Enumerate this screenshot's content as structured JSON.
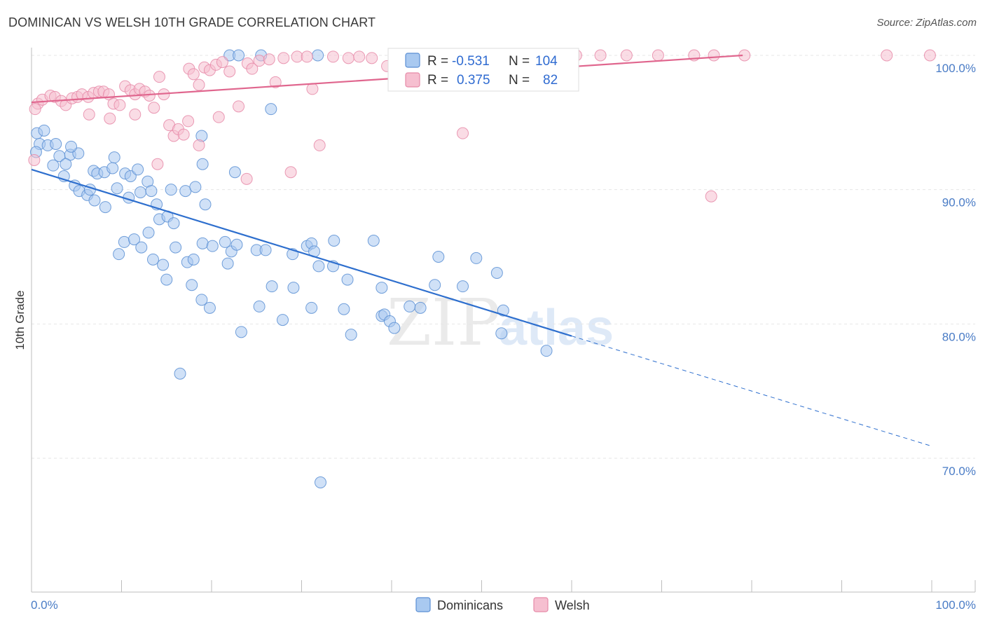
{
  "title": "DOMINICAN VS WELSH 10TH GRADE CORRELATION CHART",
  "source": "Source: ZipAtlas.com",
  "watermark": {
    "zip": "ZIP",
    "atlas": "atlas"
  },
  "legend_top": [
    {
      "r_label": "R =",
      "r_value": "-0.531",
      "n_label": "N =",
      "n_value": "104"
    },
    {
      "r_label": "R =",
      "r_value": "0.375",
      "n_label": "N =",
      "n_value": "82"
    }
  ],
  "legend_bottom": [
    "Dominicans",
    "Welsh"
  ],
  "colors": {
    "dominican_fill": "#a9c9f0",
    "dominican_stroke": "#5b8fd4",
    "dominican_line": "#2e6fce",
    "welsh_fill": "#f6bfd0",
    "welsh_stroke": "#e68aa8",
    "welsh_line": "#e0668e",
    "tick_label": "#4a7cc6",
    "grid": "#e6e6e6"
  },
  "chart_data": {
    "type": "scatter",
    "title": "DOMINICAN VS WELSH 10TH GRADE CORRELATION CHART",
    "xlabel": "",
    "ylabel": "10th Grade",
    "xlim": [
      0,
      100
    ],
    "ylim": [
      60.5,
      101.5
    ],
    "x_tick_labels": [
      {
        "value": 0,
        "label": "0.0%"
      },
      {
        "value": 100,
        "label": "100.0%"
      }
    ],
    "y_tick_labels": [
      {
        "value": 100,
        "label": "100.0%"
      },
      {
        "value": 90,
        "label": "90.0%"
      },
      {
        "value": 80,
        "label": "80.0%"
      },
      {
        "value": 70,
        "label": "70.0%"
      }
    ],
    "x_minor_ticks": [
      10,
      20,
      30,
      40,
      50,
      60,
      70,
      80,
      90
    ],
    "grid": true,
    "legend_position": "top-center",
    "series": [
      {
        "name": "Dominicans",
        "r": -0.531,
        "n": 104,
        "trend": {
          "x0": 0,
          "y0": 91.5,
          "x1": 60,
          "y1": 79.1,
          "dashed_to_x": 100,
          "dashed_to_y": 70.9
        },
        "points": [
          [
            0.6,
            94.2
          ],
          [
            1.4,
            94.4
          ],
          [
            0.9,
            93.4
          ],
          [
            1.8,
            93.3
          ],
          [
            2.7,
            93.4
          ],
          [
            3.1,
            92.5
          ],
          [
            4.3,
            92.6
          ],
          [
            5.2,
            92.7
          ],
          [
            3.8,
            91.9
          ],
          [
            6.9,
            91.4
          ],
          [
            7.3,
            91.2
          ],
          [
            8.1,
            91.3
          ],
          [
            9.0,
            91.6
          ],
          [
            10.4,
            91.2
          ],
          [
            11.0,
            91.0
          ],
          [
            12.9,
            90.6
          ],
          [
            3.6,
            91.0
          ],
          [
            4.8,
            90.3
          ],
          [
            5.3,
            89.9
          ],
          [
            6.2,
            89.6
          ],
          [
            7.0,
            89.2
          ],
          [
            8.2,
            88.7
          ],
          [
            9.5,
            90.1
          ],
          [
            10.8,
            89.4
          ],
          [
            12.1,
            89.8
          ],
          [
            13.3,
            89.9
          ],
          [
            13.9,
            88.9
          ],
          [
            15.5,
            90.0
          ],
          [
            17.1,
            89.9
          ],
          [
            18.2,
            90.2
          ],
          [
            14.2,
            87.8
          ],
          [
            15.1,
            88.0
          ],
          [
            15.8,
            87.5
          ],
          [
            13.0,
            86.8
          ],
          [
            10.3,
            86.1
          ],
          [
            11.4,
            86.3
          ],
          [
            12.2,
            85.7
          ],
          [
            13.5,
            84.8
          ],
          [
            14.6,
            84.4
          ],
          [
            15.0,
            83.3
          ],
          [
            9.7,
            85.2
          ],
          [
            16.0,
            85.7
          ],
          [
            17.3,
            84.6
          ],
          [
            18.0,
            84.8
          ],
          [
            19.0,
            86.0
          ],
          [
            20.1,
            85.8
          ],
          [
            21.5,
            86.1
          ],
          [
            22.2,
            85.4
          ],
          [
            21.8,
            84.5
          ],
          [
            22.8,
            85.9
          ],
          [
            17.8,
            82.9
          ],
          [
            18.9,
            81.8
          ],
          [
            19.8,
            81.2
          ],
          [
            16.5,
            76.3
          ],
          [
            25.0,
            85.5
          ],
          [
            26.0,
            85.5
          ],
          [
            25.3,
            81.3
          ],
          [
            26.7,
            82.8
          ],
          [
            27.9,
            80.3
          ],
          [
            29.1,
            82.7
          ],
          [
            29.0,
            85.2
          ],
          [
            30.6,
            85.8
          ],
          [
            31.1,
            86.0
          ],
          [
            31.4,
            85.4
          ],
          [
            31.9,
            84.3
          ],
          [
            33.6,
            86.2
          ],
          [
            33.5,
            84.3
          ],
          [
            35.1,
            83.3
          ],
          [
            34.7,
            81.1
          ],
          [
            35.5,
            79.2
          ],
          [
            31.1,
            81.2
          ],
          [
            23.3,
            79.4
          ],
          [
            38.9,
            80.6
          ],
          [
            39.2,
            80.7
          ],
          [
            39.8,
            80.2
          ],
          [
            40.3,
            79.7
          ],
          [
            38.9,
            82.7
          ],
          [
            42.0,
            81.3
          ],
          [
            43.2,
            81.2
          ],
          [
            44.8,
            82.9
          ],
          [
            45.2,
            85.0
          ],
          [
            47.9,
            82.8
          ],
          [
            49.4,
            84.9
          ],
          [
            51.7,
            83.8
          ],
          [
            52.4,
            81.0
          ],
          [
            52.2,
            79.3
          ],
          [
            57.2,
            78.0
          ],
          [
            32.1,
            68.2
          ],
          [
            38.0,
            86.2
          ],
          [
            26.6,
            96.0
          ],
          [
            19.0,
            91.9
          ],
          [
            22.6,
            91.3
          ],
          [
            19.3,
            88.9
          ],
          [
            18.9,
            94.0
          ],
          [
            22.0,
            100.0
          ],
          [
            23.0,
            100.0
          ],
          [
            25.5,
            100.0
          ],
          [
            31.8,
            100.0
          ],
          [
            4.4,
            93.2
          ],
          [
            6.5,
            90.0
          ],
          [
            0.5,
            92.8
          ],
          [
            2.4,
            91.8
          ],
          [
            9.2,
            92.4
          ],
          [
            11.8,
            91.5
          ]
        ]
      },
      {
        "name": "Welsh",
        "r": 0.375,
        "n": 82,
        "trend": {
          "x0": 0,
          "y0": 96.5,
          "x1": 79,
          "y1": 100.0
        },
        "points": [
          [
            0.7,
            96.4
          ],
          [
            1.2,
            96.7
          ],
          [
            2.1,
            97.0
          ],
          [
            2.6,
            96.9
          ],
          [
            3.3,
            96.6
          ],
          [
            3.8,
            96.3
          ],
          [
            4.5,
            96.8
          ],
          [
            5.1,
            96.9
          ],
          [
            5.6,
            97.1
          ],
          [
            6.3,
            96.9
          ],
          [
            6.9,
            97.2
          ],
          [
            7.5,
            97.3
          ],
          [
            8.0,
            97.3
          ],
          [
            8.6,
            97.1
          ],
          [
            9.1,
            96.4
          ],
          [
            9.8,
            96.3
          ],
          [
            10.4,
            97.7
          ],
          [
            11.0,
            97.4
          ],
          [
            11.5,
            97.1
          ],
          [
            12.0,
            97.5
          ],
          [
            12.6,
            97.3
          ],
          [
            13.1,
            97.0
          ],
          [
            13.6,
            96.1
          ],
          [
            14.2,
            98.4
          ],
          [
            14.7,
            97.1
          ],
          [
            15.3,
            94.8
          ],
          [
            15.8,
            94.0
          ],
          [
            16.3,
            94.5
          ],
          [
            16.9,
            94.1
          ],
          [
            17.5,
            99.0
          ],
          [
            18.0,
            98.6
          ],
          [
            18.6,
            97.8
          ],
          [
            19.2,
            99.1
          ],
          [
            19.8,
            98.9
          ],
          [
            20.5,
            99.3
          ],
          [
            21.2,
            99.5
          ],
          [
            22.0,
            98.8
          ],
          [
            23.0,
            96.2
          ],
          [
            24.0,
            99.4
          ],
          [
            24.5,
            99.0
          ],
          [
            25.3,
            99.6
          ],
          [
            26.4,
            99.7
          ],
          [
            27.1,
            98.0
          ],
          [
            28.0,
            99.8
          ],
          [
            29.5,
            99.9
          ],
          [
            30.6,
            99.9
          ],
          [
            31.2,
            97.5
          ],
          [
            32.0,
            93.3
          ],
          [
            33.5,
            99.9
          ],
          [
            35.2,
            99.8
          ],
          [
            36.4,
            99.9
          ],
          [
            37.8,
            99.8
          ],
          [
            39.5,
            99.2
          ],
          [
            40.9,
            99.9
          ],
          [
            42.1,
            99.9
          ],
          [
            44.0,
            99.9
          ],
          [
            17.4,
            95.1
          ],
          [
            18.6,
            93.3
          ],
          [
            20.8,
            95.4
          ],
          [
            14.0,
            91.9
          ],
          [
            11.5,
            95.6
          ],
          [
            8.7,
            95.3
          ],
          [
            6.4,
            95.6
          ],
          [
            23.9,
            90.8
          ],
          [
            28.8,
            91.3
          ],
          [
            47.9,
            94.2
          ],
          [
            60.5,
            100.0
          ],
          [
            66.1,
            100.0
          ],
          [
            69.6,
            100.0
          ],
          [
            73.6,
            100.0
          ],
          [
            75.8,
            100.0
          ],
          [
            79.2,
            100.0
          ],
          [
            95.0,
            100.0
          ],
          [
            99.8,
            100.0
          ],
          [
            60.0,
            100.0
          ],
          [
            63.2,
            100.0
          ],
          [
            52.0,
            100.0
          ],
          [
            54.5,
            100.0
          ],
          [
            57.0,
            100.0
          ],
          [
            75.5,
            89.5
          ],
          [
            0.4,
            96.0
          ],
          [
            0.3,
            92.2
          ]
        ]
      }
    ]
  }
}
